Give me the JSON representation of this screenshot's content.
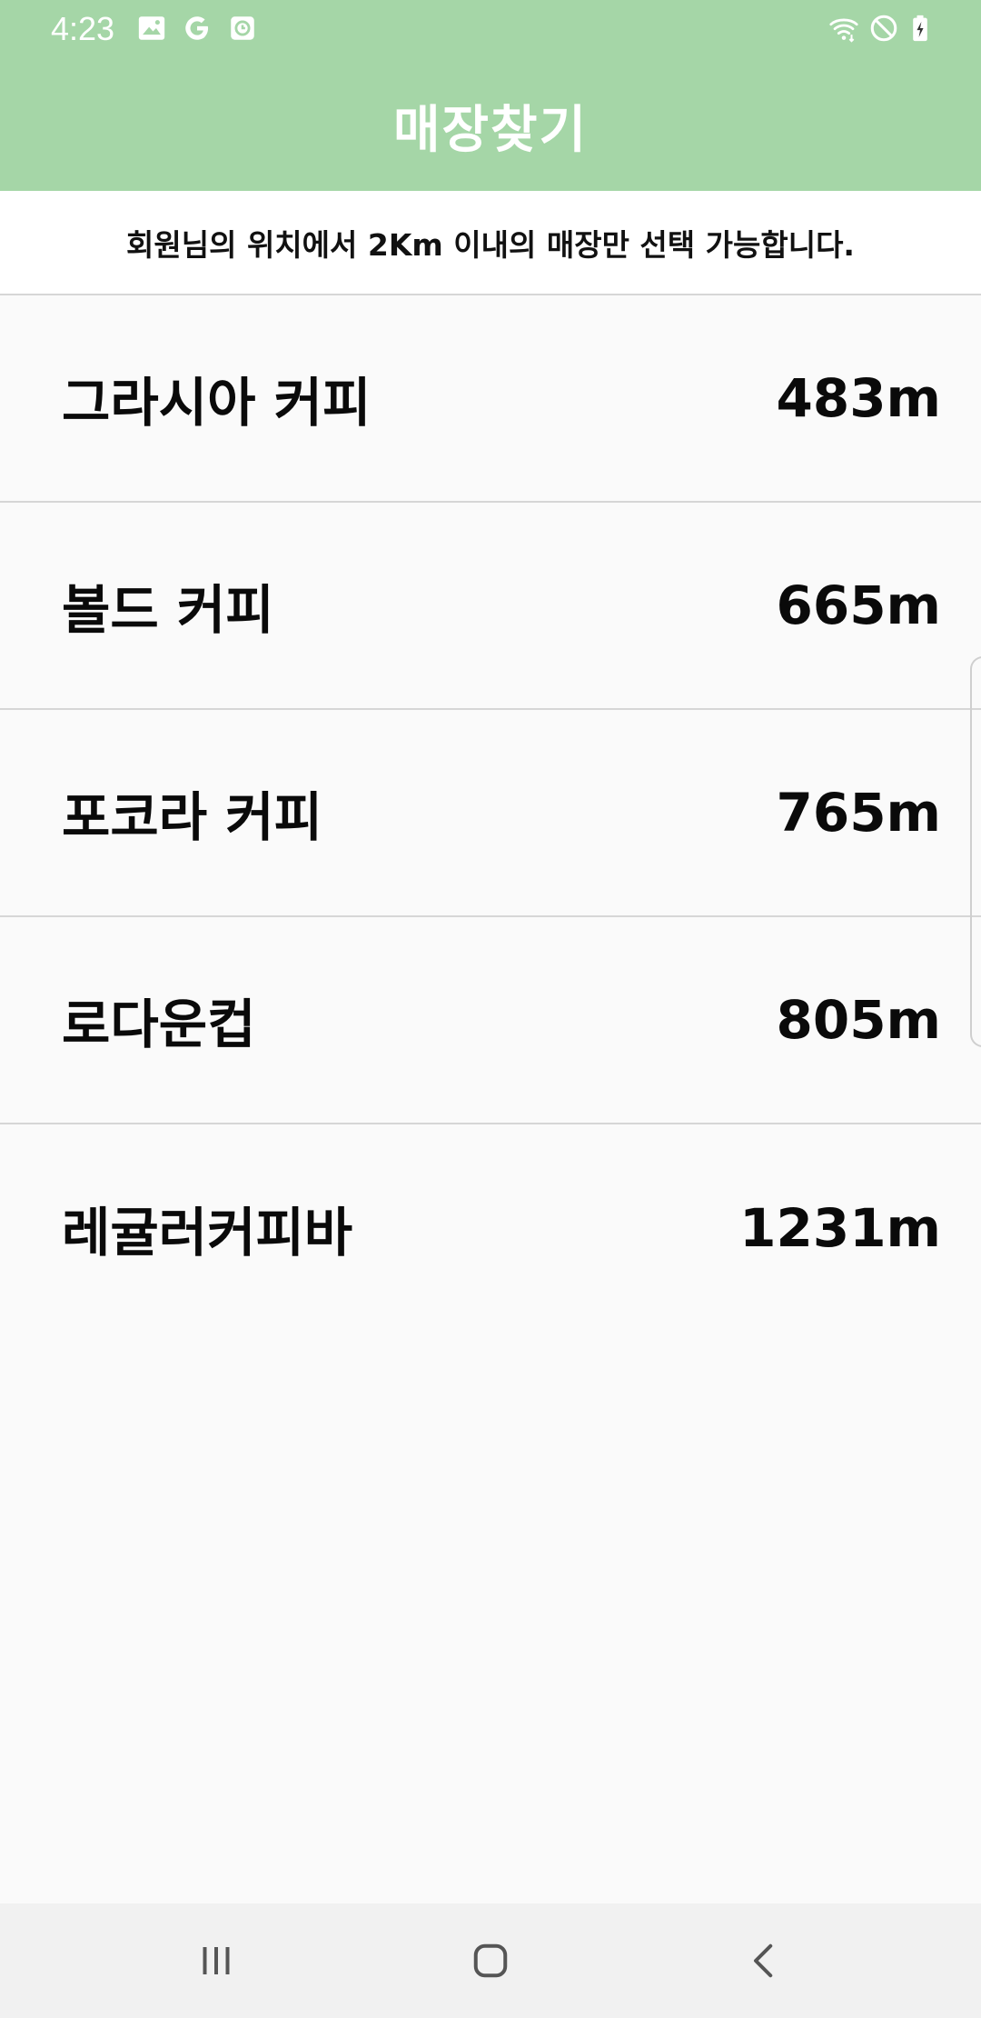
{
  "status_bar": {
    "time": "4:23",
    "left_icons": [
      "gallery-icon",
      "google-icon",
      "clock-app-icon"
    ],
    "right_icons": [
      "wifi-icon",
      "do-not-disturb-icon",
      "battery-charging-icon"
    ]
  },
  "app_bar": {
    "title": "매장찾기"
  },
  "notice": {
    "text": "회원님의 위치에서 2Km 이내의 매장만 선택 가능합니다."
  },
  "stores": [
    {
      "name": "그라시아 커피",
      "distance": "483m"
    },
    {
      "name": "볼드 커피",
      "distance": "665m"
    },
    {
      "name": "포코라 커피",
      "distance": "765m"
    },
    {
      "name": "로다운컵",
      "distance": "805m"
    },
    {
      "name": "레귤러커피바",
      "distance": "1231m"
    }
  ],
  "nav_bar": {
    "buttons": [
      "recent-apps-icon",
      "home-icon",
      "back-icon"
    ]
  },
  "colors": {
    "accent": "#a5d6a7",
    "background": "#fafafa",
    "text": "#0a0a0a",
    "divider": "#d6d6d6"
  }
}
